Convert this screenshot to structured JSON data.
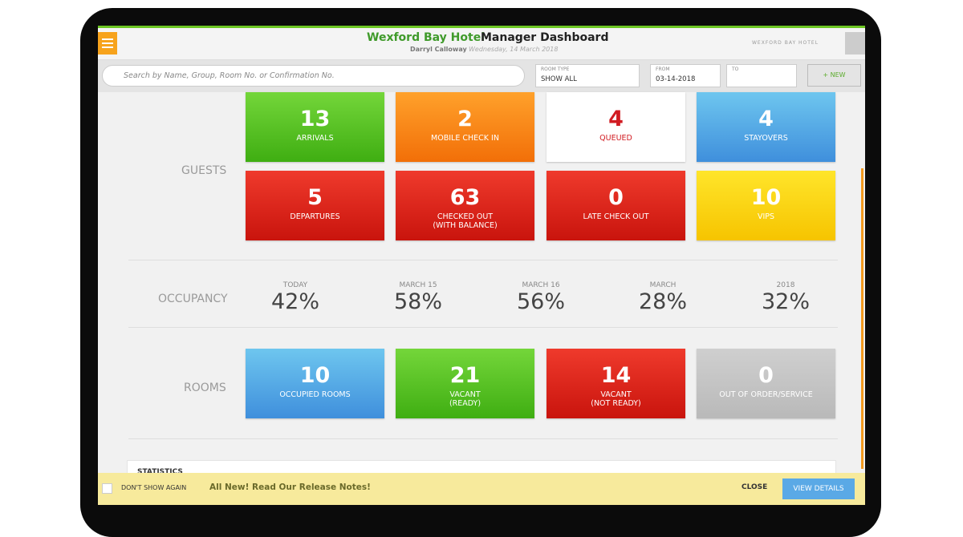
{
  "header": {
    "hotel": "Wexford Bay Hotel",
    "title": "Manager Dashboard",
    "user": "Darryl Calloway",
    "date": "Wednesday, 14 March 2018",
    "logo": "WEXFORD BAY HOTEL"
  },
  "toolbar": {
    "search_placeholder": "Search by Name, Group, Room No. or Confirmation No.",
    "room_type_label": "ROOM TYPE",
    "room_type_value": "SHOW ALL",
    "from_label": "FROM",
    "from_value": "03-14-2018",
    "to_label": "TO",
    "new_button": "+ NEW"
  },
  "guests": {
    "label": "GUESTS",
    "tiles": [
      {
        "count": 13,
        "label": [
          "ARRIVALS"
        ]
      },
      {
        "count": 2,
        "label": [
          "MOBILE CHECK IN"
        ]
      },
      {
        "count": 4,
        "label": [
          "QUEUED"
        ]
      },
      {
        "count": 4,
        "label": [
          "STAYOVERS"
        ]
      },
      {
        "count": 5,
        "label": [
          "DEPARTURES"
        ]
      },
      {
        "count": 63,
        "label": [
          "CHECKED OUT",
          "(WITH BALANCE)"
        ]
      },
      {
        "count": 0,
        "label": [
          "LATE CHECK OUT"
        ]
      },
      {
        "count": 10,
        "label": [
          "VIPS"
        ]
      }
    ]
  },
  "occupancy": {
    "label": "OCCUPANCY",
    "items": [
      {
        "period": "TODAY",
        "value": "42%"
      },
      {
        "period": "MARCH 15",
        "value": "58%"
      },
      {
        "period": "MARCH 16",
        "value": "56%"
      },
      {
        "period": "MARCH",
        "value": "28%"
      },
      {
        "period": "2018",
        "value": "32%"
      }
    ]
  },
  "rooms": {
    "label": "ROOMS",
    "tiles": [
      {
        "count": 10,
        "label": [
          "OCCUPIED ROOMS"
        ]
      },
      {
        "count": 21,
        "label": [
          "VACANT",
          "(READY)"
        ]
      },
      {
        "count": 14,
        "label": [
          "VACANT",
          "(NOT READY)"
        ]
      },
      {
        "count": 0,
        "label": [
          "OUT OF ORDER/SERVICE"
        ]
      }
    ]
  },
  "statistics": {
    "title": "STATISTICS"
  },
  "banner": {
    "checkbox": "DON'T SHOW AGAIN",
    "message": "All New! Read Our Release Notes!",
    "close": "CLOSE",
    "details": "VIEW DETAILS"
  }
}
